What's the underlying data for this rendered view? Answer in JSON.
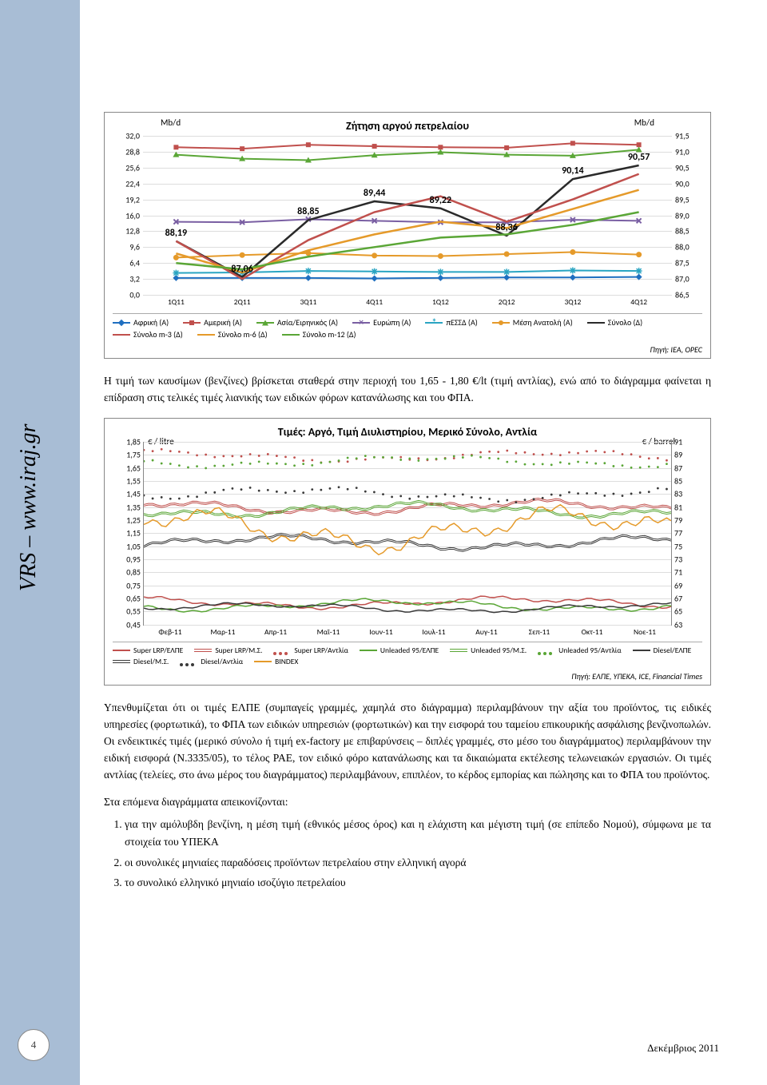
{
  "sideLabel": "VRS – www.iraj.gr",
  "pageNumber": "4",
  "footerDate": "Δεκέμβριος 2011",
  "para1": "Η τιμή των καυσίμων (βενζίνες) βρίσκεται σταθερά στην περιοχή του 1,65 - 1,80 €/lt (τιμή αντλίας), ενώ από το διάγραμμα φαίνεται η επίδραση στις τελικές τιμές λιανικής των ειδικών φόρων κατανάλωσης και του ΦΠΑ.",
  "para2": "Υπενθυμίζεται ότι οι τιμές ΕΛΠΕ (συμπαγείς γραμμές, χαμηλά στο διάγραμμα) περιλαμβάνουν την αξία του προϊόντος, τις ειδικές υπηρεσίες (φορτωτικά), το ΦΠΑ των ειδικών υπηρεσιών (φορτωτικών) και την εισφορά του ταμείου επικουρικής ασφάλισης βενζινοπωλών. Οι ενδεικτικές τιμές (μερικό σύνολο ή τιμή ex-factory με επιβαρύνσεις – διπλές γραμμές, στο μέσο του διαγράμματος) περιλαμβάνουν την ειδική εισφορά (Ν.3335/05), το τέλος ΡΑΕ, τον ειδικό φόρο κατανάλωσης και τα δικαιώματα εκτέλεσης τελωνειακών εργασιών. Οι τιμές αντλίας (τελείες, στο άνω μέρος του διαγράμματος) περιλαμβάνουν, επιπλέον, το κέρδος εμπορίας και πώλησης και το ΦΠΑ του προϊόντος.",
  "para3": "Στα επόμενα διαγράμματα απεικονίζονται:",
  "listItems": [
    "για την αμόλυβδη βενζίνη, η μέση τιμή (εθνικός μέσος όρος) και η ελάχιστη και μέγιστη τιμή (σε επίπεδο Νομού), σύμφωνα με τα στοιχεία του ΥΠΕΚΑ",
    "οι συνολικές μηνιαίες παραδόσεις προϊόντων πετρελαίου στην ελληνική αγορά",
    "το συνολικό ελληνικό μηνιαίο ισοζύγιο πετρελαίου"
  ],
  "chart1": {
    "type": "line",
    "title": "Ζήτηση αργού πετρελαίου",
    "yLeftLabel": "Mb/d",
    "yRightLabel": "Mb/d",
    "background_color": "#ffffff",
    "grid_color": "#dddddd",
    "xCategories": [
      "1Q11",
      "2Q11",
      "3Q11",
      "4Q11",
      "1Q12",
      "2Q12",
      "3Q12",
      "4Q12"
    ],
    "yLeft": {
      "min": 0.0,
      "max": 32.0,
      "ticks": [
        0.0,
        3.2,
        6.4,
        9.6,
        12.8,
        16.0,
        19.2,
        22.4,
        25.6,
        28.8,
        32.0
      ]
    },
    "yRight": {
      "min": 86.5,
      "max": 91.5,
      "ticks": [
        86.5,
        87.0,
        87.5,
        88.0,
        88.5,
        89.0,
        89.5,
        90.0,
        90.5,
        91.0,
        91.5
      ]
    },
    "seriesLeft": [
      {
        "name": "Αφρική (Α)",
        "color": "#1f6fc0",
        "marker": "diamond",
        "values": [
          3.4,
          3.4,
          3.4,
          3.3,
          3.4,
          3.5,
          3.5,
          3.6
        ]
      },
      {
        "name": "Αμερική (Α)",
        "color": "#c0504d",
        "marker": "square",
        "values": [
          29.7,
          29.4,
          30.2,
          29.9,
          29.7,
          29.6,
          30.5,
          30.2
        ]
      },
      {
        "name": "Ασία/Ειρηνικός (Α)",
        "color": "#5aa636",
        "marker": "triangle",
        "values": [
          28.2,
          27.4,
          27.1,
          28.1,
          28.7,
          28.2,
          28.0,
          29.2
        ]
      },
      {
        "name": "Ευρώπη (Α)",
        "color": "#7a5fa3",
        "marker": "x",
        "values": [
          14.7,
          14.6,
          15.2,
          14.9,
          14.6,
          14.6,
          15.1,
          14.9
        ]
      },
      {
        "name": "πΕΣΣΔ (Α)",
        "color": "#2aa5c2",
        "marker": "star",
        "values": [
          4.4,
          4.5,
          4.8,
          4.7,
          4.6,
          4.6,
          4.9,
          4.8
        ]
      },
      {
        "name": "Μέση Ανατολή (Α)",
        "color": "#e59a2a",
        "marker": "circle",
        "values": [
          7.5,
          8.0,
          8.4,
          7.9,
          7.8,
          8.2,
          8.6,
          8.1
        ]
      }
    ],
    "seriesRight": [
      {
        "name": "Σύνολο (Δ)",
        "color": "#2a2a2a",
        "values": [
          88.19,
          87.06,
          88.85,
          89.44,
          89.22,
          88.36,
          90.14,
          90.57
        ]
      },
      {
        "name": "Σύνολο m-3 (Δ)",
        "color": "#c0504d",
        "values": [
          88.19,
          87.0,
          88.22,
          89.1,
          89.6,
          88.8,
          89.5,
          90.3
        ]
      },
      {
        "name": "Σύνολο m-6 (Δ)",
        "color": "#e59a2a",
        "values": [
          87.8,
          87.2,
          87.9,
          88.4,
          88.8,
          88.6,
          89.2,
          89.8
        ]
      },
      {
        "name": "Σύνολο m-12 (Δ)",
        "color": "#5aa636",
        "values": [
          87.5,
          87.3,
          87.7,
          88.0,
          88.3,
          88.4,
          88.7,
          89.1
        ]
      }
    ],
    "dataLabels": [
      {
        "text": "88,19",
        "xi": 0,
        "yR": 88.19
      },
      {
        "text": "87,06",
        "xi": 1,
        "yR": 87.06
      },
      {
        "text": "88,85",
        "xi": 2,
        "yR": 88.85
      },
      {
        "text": "89,44",
        "xi": 3,
        "yR": 89.44
      },
      {
        "text": "89,22",
        "xi": 4,
        "yR": 89.22
      },
      {
        "text": "88,36",
        "xi": 5,
        "yR": 88.36
      },
      {
        "text": "90,14",
        "xi": 6,
        "yR": 90.14
      },
      {
        "text": "90,57",
        "xi": 7,
        "yR": 90.57
      }
    ],
    "source": "Πηγή: IEA, OPEC"
  },
  "chart2": {
    "type": "line",
    "title": "Τιμές: Αργό, Τιμή Διυλιστηρίου, Μερικό Σύνολο, Αντλία",
    "yLeftLabel": "€ / litre",
    "yRightLabel": "€ / barrel",
    "background_color": "#ffffff",
    "grid_color": "#dddddd",
    "xCategories": [
      "Φεβ-11",
      "Μαρ-11",
      "Απρ-11",
      "Μαϊ-11",
      "Ιουν-11",
      "Ιουλ-11",
      "Αυγ-11",
      "Σεπ-11",
      "Οκτ-11",
      "Νοε-11"
    ],
    "yLeft": {
      "min": 0.45,
      "max": 1.85,
      "ticks": [
        0.45,
        0.55,
        0.65,
        0.75,
        0.85,
        0.95,
        1.05,
        1.15,
        1.25,
        1.35,
        1.45,
        1.55,
        1.65,
        1.75,
        1.85
      ]
    },
    "yRight": {
      "min": 63,
      "max": 91,
      "ticks": [
        63,
        65,
        67,
        69,
        71,
        73,
        75,
        77,
        79,
        81,
        83,
        85,
        87,
        89,
        91
      ]
    },
    "legend": [
      {
        "name": "Super LRP/ΕΛΠΕ",
        "color": "#c0504d",
        "style": "solid"
      },
      {
        "name": "Super LRP/Μ.Σ.",
        "color": "#c0504d",
        "style": "double"
      },
      {
        "name": "Super LRP/Αντλία",
        "color": "#c0504d",
        "style": "dot"
      },
      {
        "name": "Unleaded 95/ΕΛΠΕ",
        "color": "#5aa636",
        "style": "solid"
      },
      {
        "name": "Unleaded 95/Μ.Σ.",
        "color": "#5aa636",
        "style": "double"
      },
      {
        "name": "Unleaded 95/Αντλία",
        "color": "#5aa636",
        "style": "dot"
      },
      {
        "name": "Diesel/ΕΛΠΕ",
        "color": "#3a3a3a",
        "style": "solid"
      },
      {
        "name": "Diesel/Μ.Σ.",
        "color": "#3a3a3a",
        "style": "double"
      },
      {
        "name": "Diesel/Αντλία",
        "color": "#3a3a3a",
        "style": "dot"
      },
      {
        "name": "BINDEX",
        "color": "#e59a2a",
        "style": "solid"
      }
    ],
    "source": "Πηγή: ΕΛΠΕ, ΥΠΕΚΑ, ICE, Financial Times"
  }
}
